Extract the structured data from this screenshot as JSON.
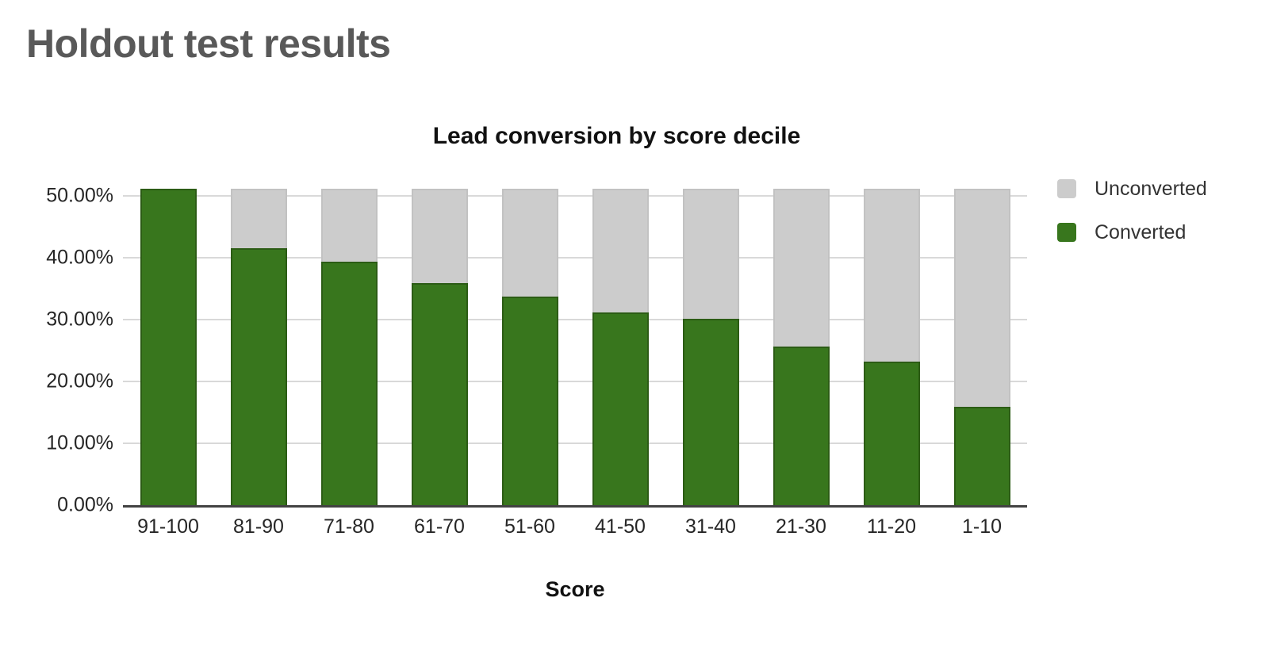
{
  "page": {
    "title": "Holdout test results"
  },
  "chart_data": {
    "type": "bar",
    "stacked": true,
    "title": "Lead conversion by score decile",
    "xlabel": "Score",
    "ylabel": "",
    "categories": [
      "91-100",
      "81-90",
      "71-80",
      "61-70",
      "51-60",
      "41-50",
      "31-40",
      "21-30",
      "11-20",
      "1-10"
    ],
    "series": [
      {
        "name": "Converted",
        "color": "#38761d",
        "values": [
          51.1,
          41.5,
          39.3,
          35.9,
          33.7,
          31.2,
          30.1,
          25.7,
          23.2,
          15.9
        ]
      },
      {
        "name": "Unconverted",
        "color": "#cccccc",
        "values": [
          0.0,
          9.6,
          11.8,
          15.2,
          17.4,
          19.9,
          21.0,
          25.4,
          27.9,
          35.2
        ]
      }
    ],
    "bar_total_pct": 51.1,
    "ylim": [
      0,
      52.8
    ],
    "ytick_values": [
      0,
      10,
      20,
      30,
      40,
      50
    ],
    "yticks": [
      "0.00%",
      "10.00%",
      "20.00%",
      "30.00%",
      "40.00%",
      "50.00%"
    ],
    "legend": [
      "Unconverted",
      "Converted"
    ],
    "legend_position": "right",
    "grid": true,
    "colors": {
      "converted": "#38761d",
      "unconverted": "#cccccc",
      "gridline": "#d9d9d9",
      "axis_line": "#424242",
      "page_title": "#595959"
    }
  }
}
